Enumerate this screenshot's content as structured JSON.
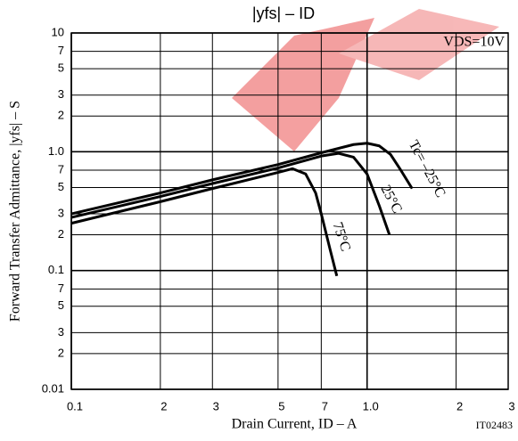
{
  "chart_data": {
    "type": "line",
    "title": "|yfs|  –  ID",
    "x_label": "Drain Current, ID  –  A",
    "y_label": "Forward Transfer Admittance, |yfs|  –  S",
    "annotations": [
      "VDS=10V",
      "IT02483"
    ],
    "log_x": true,
    "log_y": true,
    "grid": true,
    "xlim": [
      0.1,
      3
    ],
    "ylim": [
      0.01,
      10
    ],
    "xticks": [
      0.1,
      {
        "value": 0.2,
        "label": "2"
      },
      {
        "value": 0.3,
        "label": "3"
      },
      {
        "value": 0.5,
        "label": "5"
      },
      {
        "value": 0.7,
        "label": "7"
      },
      {
        "value": 1,
        "label": "1.0"
      },
      2,
      3
    ],
    "yticks": [
      0.01,
      {
        "value": 0.02,
        "label": "2"
      },
      {
        "value": 0.03,
        "label": "3"
      },
      {
        "value": 0.05,
        "label": "5"
      },
      {
        "value": 0.07,
        "label": "7"
      },
      0.1,
      {
        "value": 0.2,
        "label": "2"
      },
      {
        "value": 0.3,
        "label": "3"
      },
      {
        "value": 0.5,
        "label": "5"
      },
      {
        "value": 0.7,
        "label": "7"
      },
      {
        "value": 1,
        "label": "1.0"
      },
      2,
      3,
      5,
      7,
      10
    ],
    "series": [
      {
        "name": "Tc= –25°C",
        "color": "#000000",
        "x": [
          0.1,
          0.2,
          0.3,
          0.5,
          0.7,
          0.9,
          1.0,
          1.1,
          1.2,
          1.3,
          1.42
        ],
        "values": [
          0.3,
          0.45,
          0.58,
          0.78,
          0.98,
          1.15,
          1.18,
          1.12,
          0.95,
          0.7,
          0.49
        ]
      },
      {
        "name": "25°C",
        "color": "#000000",
        "x": [
          0.1,
          0.2,
          0.3,
          0.5,
          0.7,
          0.8,
          0.9,
          1.0,
          1.1,
          1.19
        ],
        "values": [
          0.28,
          0.42,
          0.54,
          0.73,
          0.92,
          0.97,
          0.9,
          0.65,
          0.35,
          0.2
        ]
      },
      {
        "name": "75°C",
        "color": "#000000",
        "x": [
          0.1,
          0.2,
          0.3,
          0.5,
          0.56,
          0.62,
          0.67,
          0.7,
          0.75,
          0.79
        ],
        "values": [
          0.25,
          0.38,
          0.49,
          0.67,
          0.72,
          0.65,
          0.45,
          0.3,
          0.15,
          0.09
        ]
      }
    ]
  }
}
